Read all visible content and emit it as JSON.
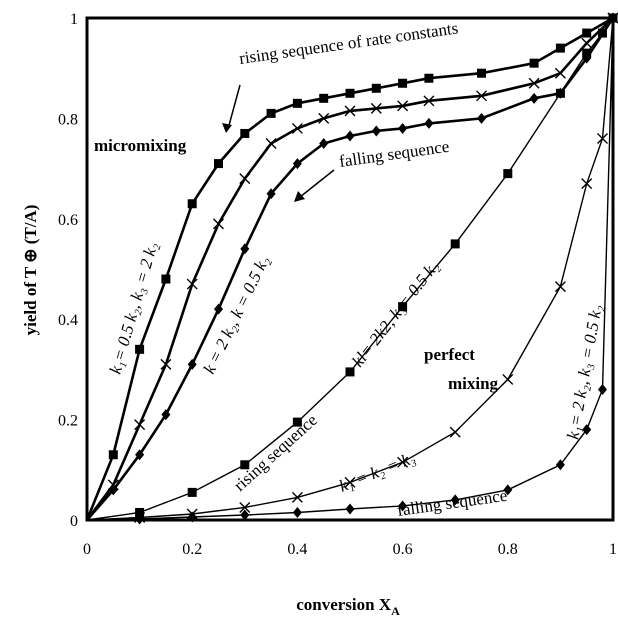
{
  "chart_data": {
    "type": "line",
    "title": "",
    "xlabel": "conversion X",
    "xlabel_sub": "A",
    "ylabel": "yield of T ⊕ (T/A)",
    "xlim": [
      0,
      1
    ],
    "ylim": [
      0,
      1
    ],
    "xticks": [
      "0",
      "0.2",
      "0.4",
      "0.6",
      "0.8",
      "1"
    ],
    "yticks": [
      "0",
      "0.2",
      "0.4",
      "0.6",
      "0.8",
      "1"
    ],
    "grid": false,
    "legend": "none",
    "series": [
      {
        "marker": "square",
        "line": "thick",
        "x": [
          0,
          0.05,
          0.1,
          0.15,
          0.2,
          0.25,
          0.3,
          0.35,
          0.4,
          0.45,
          0.5,
          0.55,
          0.6,
          0.65,
          0.75,
          0.85,
          0.9,
          0.95,
          1
        ],
        "y": [
          0,
          0.13,
          0.34,
          0.48,
          0.63,
          0.71,
          0.77,
          0.81,
          0.83,
          0.84,
          0.85,
          0.86,
          0.87,
          0.88,
          0.89,
          0.91,
          0.94,
          0.97,
          1
        ]
      },
      {
        "marker": "x",
        "line": "thick",
        "x": [
          0,
          0.05,
          0.1,
          0.15,
          0.2,
          0.25,
          0.3,
          0.35,
          0.4,
          0.45,
          0.5,
          0.55,
          0.6,
          0.65,
          0.75,
          0.85,
          0.9,
          0.95,
          1
        ],
        "y": [
          0,
          0.07,
          0.19,
          0.31,
          0.47,
          0.59,
          0.68,
          0.75,
          0.78,
          0.8,
          0.815,
          0.82,
          0.825,
          0.835,
          0.845,
          0.87,
          0.89,
          0.95,
          1
        ]
      },
      {
        "marker": "diamond",
        "line": "thick",
        "x": [
          0,
          0.05,
          0.1,
          0.15,
          0.2,
          0.25,
          0.3,
          0.35,
          0.4,
          0.45,
          0.5,
          0.55,
          0.6,
          0.65,
          0.75,
          0.85,
          0.9,
          0.95,
          1
        ],
        "y": [
          0,
          0.06,
          0.13,
          0.21,
          0.31,
          0.42,
          0.54,
          0.65,
          0.71,
          0.75,
          0.765,
          0.775,
          0.78,
          0.79,
          0.8,
          0.84,
          0.85,
          0.92,
          1
        ]
      },
      {
        "marker": "square",
        "line": "thin",
        "x": [
          0,
          0.1,
          0.2,
          0.3,
          0.4,
          0.5,
          0.6,
          0.7,
          0.8,
          0.9,
          0.95,
          0.98,
          1
        ],
        "y": [
          0,
          0.015,
          0.055,
          0.11,
          0.195,
          0.295,
          0.425,
          0.55,
          0.69,
          0.85,
          0.93,
          0.97,
          1
        ]
      },
      {
        "marker": "x",
        "line": "thin",
        "x": [
          0,
          0.1,
          0.2,
          0.3,
          0.4,
          0.5,
          0.6,
          0.7,
          0.8,
          0.9,
          0.95,
          0.98,
          1
        ],
        "y": [
          0,
          0.005,
          0.012,
          0.025,
          0.045,
          0.075,
          0.115,
          0.175,
          0.28,
          0.465,
          0.67,
          0.76,
          1
        ]
      },
      {
        "marker": "diamond",
        "line": "thin",
        "x": [
          0,
          0.1,
          0.2,
          0.3,
          0.4,
          0.5,
          0.6,
          0.7,
          0.8,
          0.9,
          0.95,
          0.98,
          1
        ],
        "y": [
          0,
          0.002,
          0.006,
          0.01,
          0.015,
          0.022,
          0.028,
          0.04,
          0.06,
          0.11,
          0.18,
          0.26,
          1
        ]
      }
    ],
    "annotations": {
      "rising_rate": "rising sequence of rate constants",
      "micromixing": "micromixing",
      "falling_upper": "falling sequence",
      "label_k1_05k2": "k₁= 0.5 k₂, k₃ = 2 k₂",
      "label_k_2k2": "k = 2 k₂,  k = 0.5 k₂",
      "label_kl_2k2": "kl= 2k2, k₃= 0.5 k₂",
      "perfect": "perfect",
      "mixing": "mixing",
      "rising_lower": "rising sequence",
      "label_equal": "k₁ =  k₂ = k₃",
      "falling_lower": "falling sequence",
      "label_k1_2k2_right": "k₁= 2 k₂, k₃ = 0.5 k₂"
    }
  }
}
